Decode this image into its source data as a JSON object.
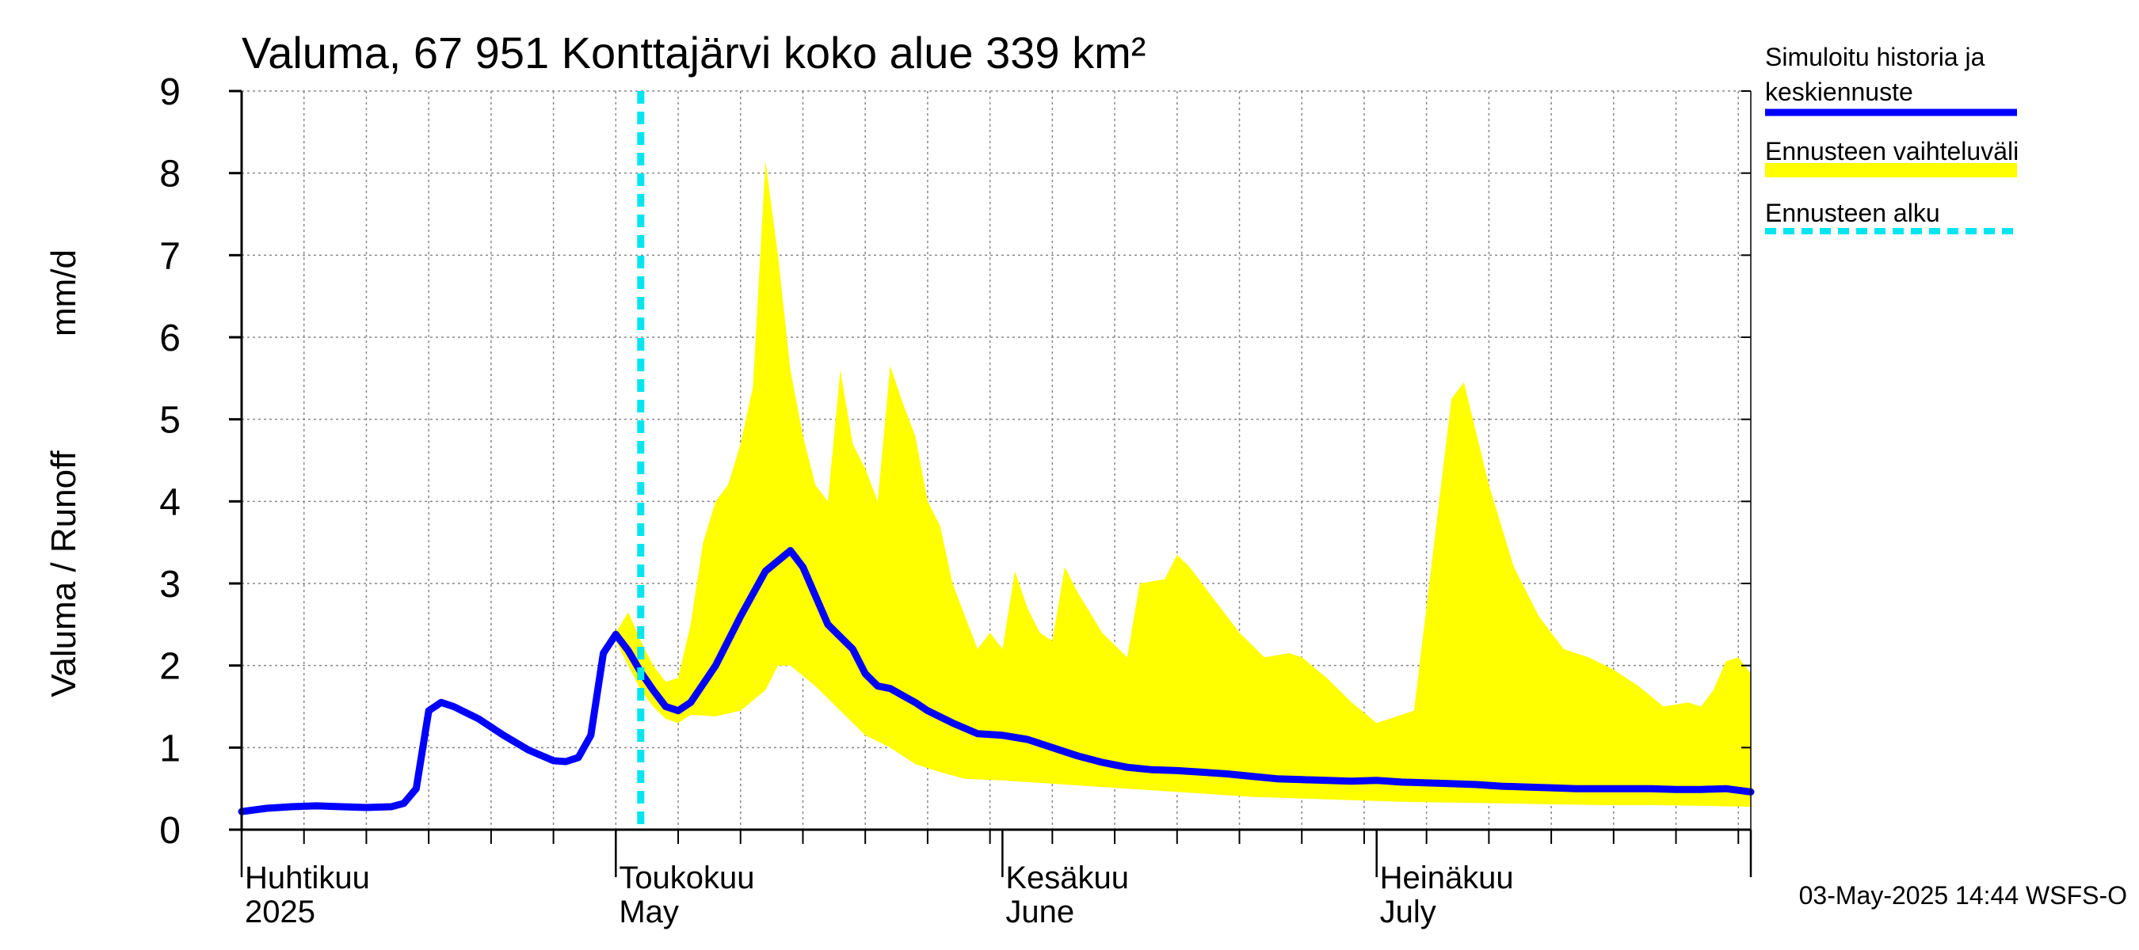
{
  "chart_data": {
    "type": "line",
    "title": "Valuma, 67 951 Konttajärvi koko alue 339 km²",
    "ylabel_fi": "Valuma / Runoff",
    "ylabel_unit": "mm/d",
    "ylim": [
      0,
      9
    ],
    "yticks": [
      "0",
      "1",
      "2",
      "3",
      "4",
      "5",
      "6",
      "7",
      "8",
      "9"
    ],
    "xlim": [
      "2025-04-01",
      "2025-07-31"
    ],
    "grid": true,
    "month_labels": [
      {
        "date": "2025-04-01",
        "fi": "Huhtikuu",
        "en": "2025"
      },
      {
        "date": "2025-05-01",
        "fi": "Toukokuu",
        "en": "May"
      },
      {
        "date": "2025-06-01",
        "fi": "Kesäkuu",
        "en": "June"
      },
      {
        "date": "2025-07-01",
        "fi": "Heinäkuu",
        "en": "July"
      }
    ],
    "forecast_start": "2025-05-03",
    "legend": [
      {
        "label1": "Simuloitu historia ja",
        "label2": "keskiennuste",
        "color": "#0000ff",
        "style": "solid"
      },
      {
        "label1": "Ennusteen vaihteluväli",
        "label2": "",
        "color": "#ffff00",
        "style": "band"
      },
      {
        "label1": "Ennusteen alku",
        "label2": "",
        "color": "#00e5ee",
        "style": "dashed"
      }
    ],
    "legend_placement": "right",
    "footer": "03-May-2025 14:44 WSFS-O",
    "series": [
      {
        "kind": "line",
        "color": "#0000ff",
        "points": [
          [
            "2025-04-01",
            0.22
          ],
          [
            "2025-04-03",
            0.26
          ],
          [
            "2025-04-05",
            0.28
          ],
          [
            "2025-04-07",
            0.29
          ],
          [
            "2025-04-09",
            0.28
          ],
          [
            "2025-04-11",
            0.27
          ],
          [
            "2025-04-13",
            0.28
          ],
          [
            "2025-04-14",
            0.32
          ],
          [
            "2025-04-15",
            0.5
          ],
          [
            "2025-04-16",
            1.45
          ],
          [
            "2025-04-17",
            1.55
          ],
          [
            "2025-04-18",
            1.5
          ],
          [
            "2025-04-20",
            1.35
          ],
          [
            "2025-04-22",
            1.15
          ],
          [
            "2025-04-24",
            0.97
          ],
          [
            "2025-04-26",
            0.84
          ],
          [
            "2025-04-27",
            0.83
          ],
          [
            "2025-04-28",
            0.88
          ],
          [
            "2025-04-29",
            1.15
          ],
          [
            "2025-04-30",
            2.15
          ],
          [
            "2025-05-01",
            2.38
          ],
          [
            "2025-05-02",
            2.18
          ],
          [
            "2025-05-03",
            1.92
          ],
          [
            "2025-05-04",
            1.7
          ],
          [
            "2025-05-05",
            1.5
          ],
          [
            "2025-05-06",
            1.45
          ],
          [
            "2025-05-07",
            1.55
          ],
          [
            "2025-05-09",
            2.0
          ],
          [
            "2025-05-11",
            2.6
          ],
          [
            "2025-05-13",
            3.15
          ],
          [
            "2025-05-15",
            3.4
          ],
          [
            "2025-05-16",
            3.2
          ],
          [
            "2025-05-18",
            2.5
          ],
          [
            "2025-05-20",
            2.2
          ],
          [
            "2025-05-21",
            1.9
          ],
          [
            "2025-05-22",
            1.75
          ],
          [
            "2025-05-23",
            1.72
          ],
          [
            "2025-05-25",
            1.55
          ],
          [
            "2025-05-26",
            1.45
          ],
          [
            "2025-05-28",
            1.3
          ],
          [
            "2025-05-30",
            1.17
          ],
          [
            "2025-06-01",
            1.15
          ],
          [
            "2025-06-03",
            1.1
          ],
          [
            "2025-06-05",
            1.0
          ],
          [
            "2025-06-07",
            0.9
          ],
          [
            "2025-06-09",
            0.82
          ],
          [
            "2025-06-11",
            0.76
          ],
          [
            "2025-06-13",
            0.73
          ],
          [
            "2025-06-15",
            0.72
          ],
          [
            "2025-06-17",
            0.7
          ],
          [
            "2025-06-19",
            0.68
          ],
          [
            "2025-06-21",
            0.65
          ],
          [
            "2025-06-23",
            0.62
          ],
          [
            "2025-06-25",
            0.61
          ],
          [
            "2025-06-27",
            0.6
          ],
          [
            "2025-06-29",
            0.59
          ],
          [
            "2025-07-01",
            0.6
          ],
          [
            "2025-07-03",
            0.58
          ],
          [
            "2025-07-05",
            0.57
          ],
          [
            "2025-07-07",
            0.56
          ],
          [
            "2025-07-09",
            0.55
          ],
          [
            "2025-07-11",
            0.53
          ],
          [
            "2025-07-13",
            0.52
          ],
          [
            "2025-07-15",
            0.51
          ],
          [
            "2025-07-17",
            0.5
          ],
          [
            "2025-07-19",
            0.5
          ],
          [
            "2025-07-21",
            0.5
          ],
          [
            "2025-07-23",
            0.5
          ],
          [
            "2025-07-25",
            0.49
          ],
          [
            "2025-07-27",
            0.49
          ],
          [
            "2025-07-29",
            0.5
          ],
          [
            "2025-07-31",
            0.46
          ]
        ]
      },
      {
        "kind": "band",
        "color": "#ffff00",
        "upper": [
          [
            "2025-05-01",
            2.4
          ],
          [
            "2025-05-02",
            2.65
          ],
          [
            "2025-05-03",
            2.3
          ],
          [
            "2025-05-04",
            2.0
          ],
          [
            "2025-05-05",
            1.8
          ],
          [
            "2025-05-06",
            1.85
          ],
          [
            "2025-05-07",
            2.5
          ],
          [
            "2025-05-08",
            3.5
          ],
          [
            "2025-05-09",
            4.0
          ],
          [
            "2025-05-10",
            4.2
          ],
          [
            "2025-05-11",
            4.7
          ],
          [
            "2025-05-12",
            5.4
          ],
          [
            "2025-05-13",
            8.15
          ],
          [
            "2025-05-14",
            7.0
          ],
          [
            "2025-05-15",
            5.6
          ],
          [
            "2025-05-16",
            4.8
          ],
          [
            "2025-05-17",
            4.2
          ],
          [
            "2025-05-18",
            4.0
          ],
          [
            "2025-05-19",
            5.6
          ],
          [
            "2025-05-20",
            4.7
          ],
          [
            "2025-05-21",
            4.4
          ],
          [
            "2025-05-22",
            4.0
          ],
          [
            "2025-05-23",
            5.65
          ],
          [
            "2025-05-24",
            5.2
          ],
          [
            "2025-05-25",
            4.8
          ],
          [
            "2025-05-26",
            4.0
          ],
          [
            "2025-05-27",
            3.7
          ],
          [
            "2025-05-28",
            3.0
          ],
          [
            "2025-05-29",
            2.6
          ],
          [
            "2025-05-30",
            2.2
          ],
          [
            "2025-05-31",
            2.4
          ],
          [
            "2025-06-01",
            2.2
          ],
          [
            "2025-06-02",
            3.15
          ],
          [
            "2025-06-03",
            2.7
          ],
          [
            "2025-06-04",
            2.4
          ],
          [
            "2025-06-05",
            2.3
          ],
          [
            "2025-06-06",
            3.2
          ],
          [
            "2025-06-07",
            2.9
          ],
          [
            "2025-06-09",
            2.4
          ],
          [
            "2025-06-11",
            2.1
          ],
          [
            "2025-06-12",
            3.0
          ],
          [
            "2025-06-14",
            3.05
          ],
          [
            "2025-06-15",
            3.35
          ],
          [
            "2025-06-16",
            3.2
          ],
          [
            "2025-06-18",
            2.8
          ],
          [
            "2025-06-20",
            2.4
          ],
          [
            "2025-06-22",
            2.1
          ],
          [
            "2025-06-24",
            2.15
          ],
          [
            "2025-06-25",
            2.1
          ],
          [
            "2025-06-27",
            1.85
          ],
          [
            "2025-06-29",
            1.55
          ],
          [
            "2025-07-01",
            1.3
          ],
          [
            "2025-07-03",
            1.4
          ],
          [
            "2025-07-04",
            1.45
          ],
          [
            "2025-07-07",
            5.25
          ],
          [
            "2025-07-08",
            5.45
          ],
          [
            "2025-07-10",
            4.2
          ],
          [
            "2025-07-12",
            3.2
          ],
          [
            "2025-07-14",
            2.6
          ],
          [
            "2025-07-16",
            2.2
          ],
          [
            "2025-07-18",
            2.1
          ],
          [
            "2025-07-20",
            1.95
          ],
          [
            "2025-07-22",
            1.75
          ],
          [
            "2025-07-24",
            1.5
          ],
          [
            "2025-07-26",
            1.55
          ],
          [
            "2025-07-27",
            1.5
          ],
          [
            "2025-07-28",
            1.7
          ],
          [
            "2025-07-29",
            2.05
          ],
          [
            "2025-07-30",
            2.1
          ],
          [
            "2025-07-31",
            1.9
          ]
        ],
        "lower": [
          [
            "2025-05-01",
            2.3
          ],
          [
            "2025-05-02",
            2.0
          ],
          [
            "2025-05-03",
            1.7
          ],
          [
            "2025-05-04",
            1.5
          ],
          [
            "2025-05-05",
            1.35
          ],
          [
            "2025-05-06",
            1.3
          ],
          [
            "2025-05-07",
            1.4
          ],
          [
            "2025-05-09",
            1.38
          ],
          [
            "2025-05-11",
            1.45
          ],
          [
            "2025-05-13",
            1.7
          ],
          [
            "2025-05-14",
            2.0
          ],
          [
            "2025-05-15",
            2.0
          ],
          [
            "2025-05-17",
            1.75
          ],
          [
            "2025-05-19",
            1.45
          ],
          [
            "2025-05-21",
            1.15
          ],
          [
            "2025-05-23",
            1.0
          ],
          [
            "2025-05-25",
            0.8
          ],
          [
            "2025-05-27",
            0.7
          ],
          [
            "2025-05-29",
            0.62
          ],
          [
            "2025-06-01",
            0.6
          ],
          [
            "2025-06-05",
            0.56
          ],
          [
            "2025-06-09",
            0.52
          ],
          [
            "2025-06-13",
            0.48
          ],
          [
            "2025-06-17",
            0.44
          ],
          [
            "2025-06-21",
            0.4
          ],
          [
            "2025-06-25",
            0.38
          ],
          [
            "2025-06-29",
            0.36
          ],
          [
            "2025-07-03",
            0.34
          ],
          [
            "2025-07-07",
            0.33
          ],
          [
            "2025-07-11",
            0.32
          ],
          [
            "2025-07-15",
            0.31
          ],
          [
            "2025-07-19",
            0.3
          ],
          [
            "2025-07-23",
            0.3
          ],
          [
            "2025-07-27",
            0.29
          ],
          [
            "2025-07-31",
            0.28
          ]
        ]
      }
    ]
  }
}
